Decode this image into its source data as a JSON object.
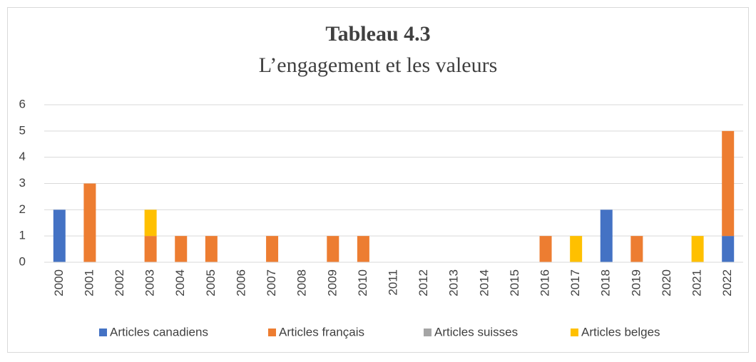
{
  "chart_data": {
    "type": "stacked_bar",
    "title": "Tableau 4.3",
    "subtitle": "L’engagement et les valeurs",
    "categories": [
      "2000",
      "2001",
      "2002",
      "2003",
      "2004",
      "2005",
      "2006",
      "2007",
      "2008",
      "2009",
      "2010",
      "2011",
      "2012",
      "2013",
      "2014",
      "2015",
      "2016",
      "2017",
      "2018",
      "2019",
      "2020",
      "2021",
      "2022"
    ],
    "series": [
      {
        "name": "Articles canadiens",
        "color": "#4472c4",
        "values": [
          2,
          0,
          0,
          0,
          0,
          0,
          0,
          0,
          0,
          0,
          0,
          0,
          0,
          0,
          0,
          0,
          0,
          0,
          2,
          0,
          0,
          0,
          1
        ]
      },
      {
        "name": "Articles français",
        "color": "#ed7d31",
        "values": [
          0,
          3,
          0,
          1,
          1,
          1,
          0,
          1,
          0,
          1,
          1,
          0,
          0,
          0,
          0,
          0,
          1,
          0,
          0,
          1,
          0,
          0,
          4
        ]
      },
      {
        "name": "Articles suisses",
        "color": "#a5a5a5",
        "values": [
          0,
          0,
          0,
          0,
          0,
          0,
          0,
          0,
          0,
          0,
          0,
          0,
          0,
          0,
          0,
          0,
          0,
          0,
          0,
          0,
          0,
          0,
          0
        ]
      },
      {
        "name": "Articles belges",
        "color": "#ffc000",
        "values": [
          0,
          0,
          0,
          1,
          0,
          0,
          0,
          0,
          0,
          0,
          0,
          0,
          0,
          0,
          0,
          0,
          0,
          1,
          0,
          0,
          0,
          1,
          0
        ]
      }
    ],
    "ylim": [
      0,
      6
    ],
    "yticks": [
      0,
      1,
      2,
      3,
      4,
      5,
      6
    ],
    "grid": true,
    "legend": "bottom"
  }
}
